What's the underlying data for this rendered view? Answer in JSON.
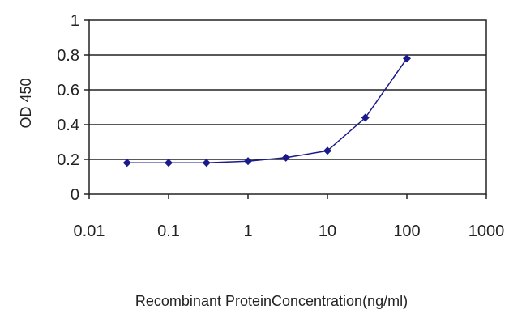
{
  "chart_data": {
    "type": "line",
    "title": "",
    "xlabel": "Recombinant ProteinConcentration(ng/ml)",
    "ylabel": "OD 450",
    "x_scale": "log",
    "xlim": [
      0.01,
      1000
    ],
    "ylim": [
      0,
      1
    ],
    "x_ticks": [
      "0.01",
      "0.1",
      "1",
      "10",
      "100",
      "1000"
    ],
    "y_ticks": [
      "0",
      "0.2",
      "0.4",
      "0.6",
      "0.8",
      "1"
    ],
    "grid": "horizontal",
    "legend": "none",
    "series": [
      {
        "x": [
          0.03,
          0.1,
          0.3,
          1,
          3,
          10,
          30,
          100
        ],
        "y": [
          0.18,
          0.18,
          0.18,
          0.19,
          0.21,
          0.25,
          0.44,
          0.78
        ],
        "color": "#1a1a8c",
        "marker": "diamond"
      }
    ]
  }
}
